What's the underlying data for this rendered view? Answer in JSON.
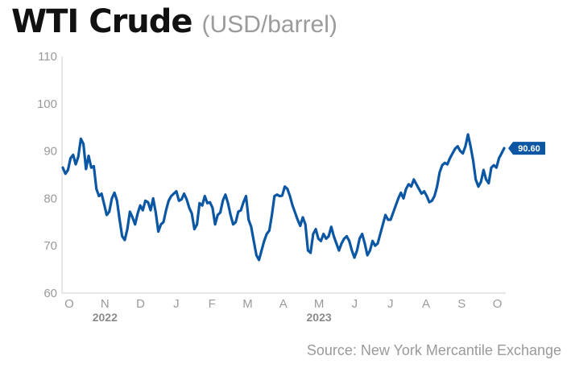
{
  "header": {
    "title": "WTI Crude",
    "subtitle": "(USD/barrel)"
  },
  "footer": {
    "source": "Source: New York Mercantile Exchange"
  },
  "colors": {
    "line": "#0b57a4",
    "axis": "#cfcfcf",
    "tick_text": "#9a9a9a",
    "label_bg": "#0b57a4"
  },
  "chart_data": {
    "type": "line",
    "title": "WTI Crude",
    "subtitle": "(USD/barrel)",
    "xlabel": "",
    "ylabel": "",
    "ylim": [
      60,
      110
    ],
    "yticks": [
      "60",
      "70",
      "80",
      "90",
      "100",
      "110"
    ],
    "xticks": [
      "O",
      "N",
      "D",
      "J",
      "F",
      "M",
      "A",
      "M",
      "J",
      "J",
      "A",
      "S",
      "O"
    ],
    "year_labels": [
      {
        "label": "2022",
        "month": "N"
      },
      {
        "label": "2023",
        "month": "M"
      }
    ],
    "grid": false,
    "end_label": "90.60",
    "series": [
      {
        "values": [
          86.5,
          85.2,
          86.0,
          88.5,
          89.2,
          87.2,
          88.8,
          92.6,
          91.5,
          86.2,
          89.0,
          86.5,
          86.8,
          82.0,
          80.5,
          81.0,
          78.8,
          76.5,
          77.2,
          80.0,
          81.2,
          79.5,
          75.5,
          72.0,
          71.2,
          73.5,
          77.2,
          76.0,
          74.5,
          76.8,
          78.5,
          77.5,
          79.5,
          79.2,
          77.5,
          80.0,
          77.0,
          73.0,
          74.5,
          75.0,
          77.5,
          79.5,
          80.5,
          81.0,
          81.5,
          79.5,
          79.8,
          81.0,
          79.8,
          78.0,
          76.8,
          73.5,
          74.5,
          79.0,
          78.5,
          80.5,
          79.0,
          79.2,
          78.0,
          74.5,
          76.5,
          77.0,
          79.5,
          80.8,
          79.0,
          76.5,
          74.5,
          75.0,
          77.2,
          77.5,
          79.2,
          80.5,
          75.5,
          74.0,
          71.0,
          68.0,
          67.0,
          69.0,
          71.0,
          72.5,
          73.2,
          76.5,
          80.5,
          80.8,
          80.5,
          80.6,
          82.5,
          82.0,
          80.5,
          78.5,
          77.0,
          75.5,
          74.2,
          76.0,
          74.5,
          69.0,
          68.5,
          72.5,
          73.5,
          71.5,
          71.0,
          72.5,
          71.5,
          72.0,
          74.0,
          72.0,
          70.5,
          69.0,
          70.5,
          71.5,
          72.0,
          71.0,
          69.0,
          67.5,
          69.0,
          71.5,
          72.5,
          70.5,
          68.0,
          69.0,
          71.0,
          70.0,
          70.5,
          72.5,
          74.5,
          76.5,
          75.5,
          75.5,
          77.0,
          78.5,
          80.0,
          81.2,
          80.0,
          82.0,
          83.0,
          82.5,
          84.0,
          83.0,
          82.0,
          81.0,
          81.5,
          80.5,
          79.2,
          79.5,
          80.5,
          82.5,
          85.5,
          87.0,
          87.5,
          87.2,
          88.5,
          89.5,
          90.5,
          91.0,
          90.0,
          89.5,
          91.0,
          93.5,
          91.0,
          88.0,
          84.0,
          82.5,
          83.5,
          86.0,
          84.0,
          83.2,
          86.5,
          87.0,
          86.5,
          88.5,
          89.5,
          90.6
        ]
      }
    ]
  }
}
